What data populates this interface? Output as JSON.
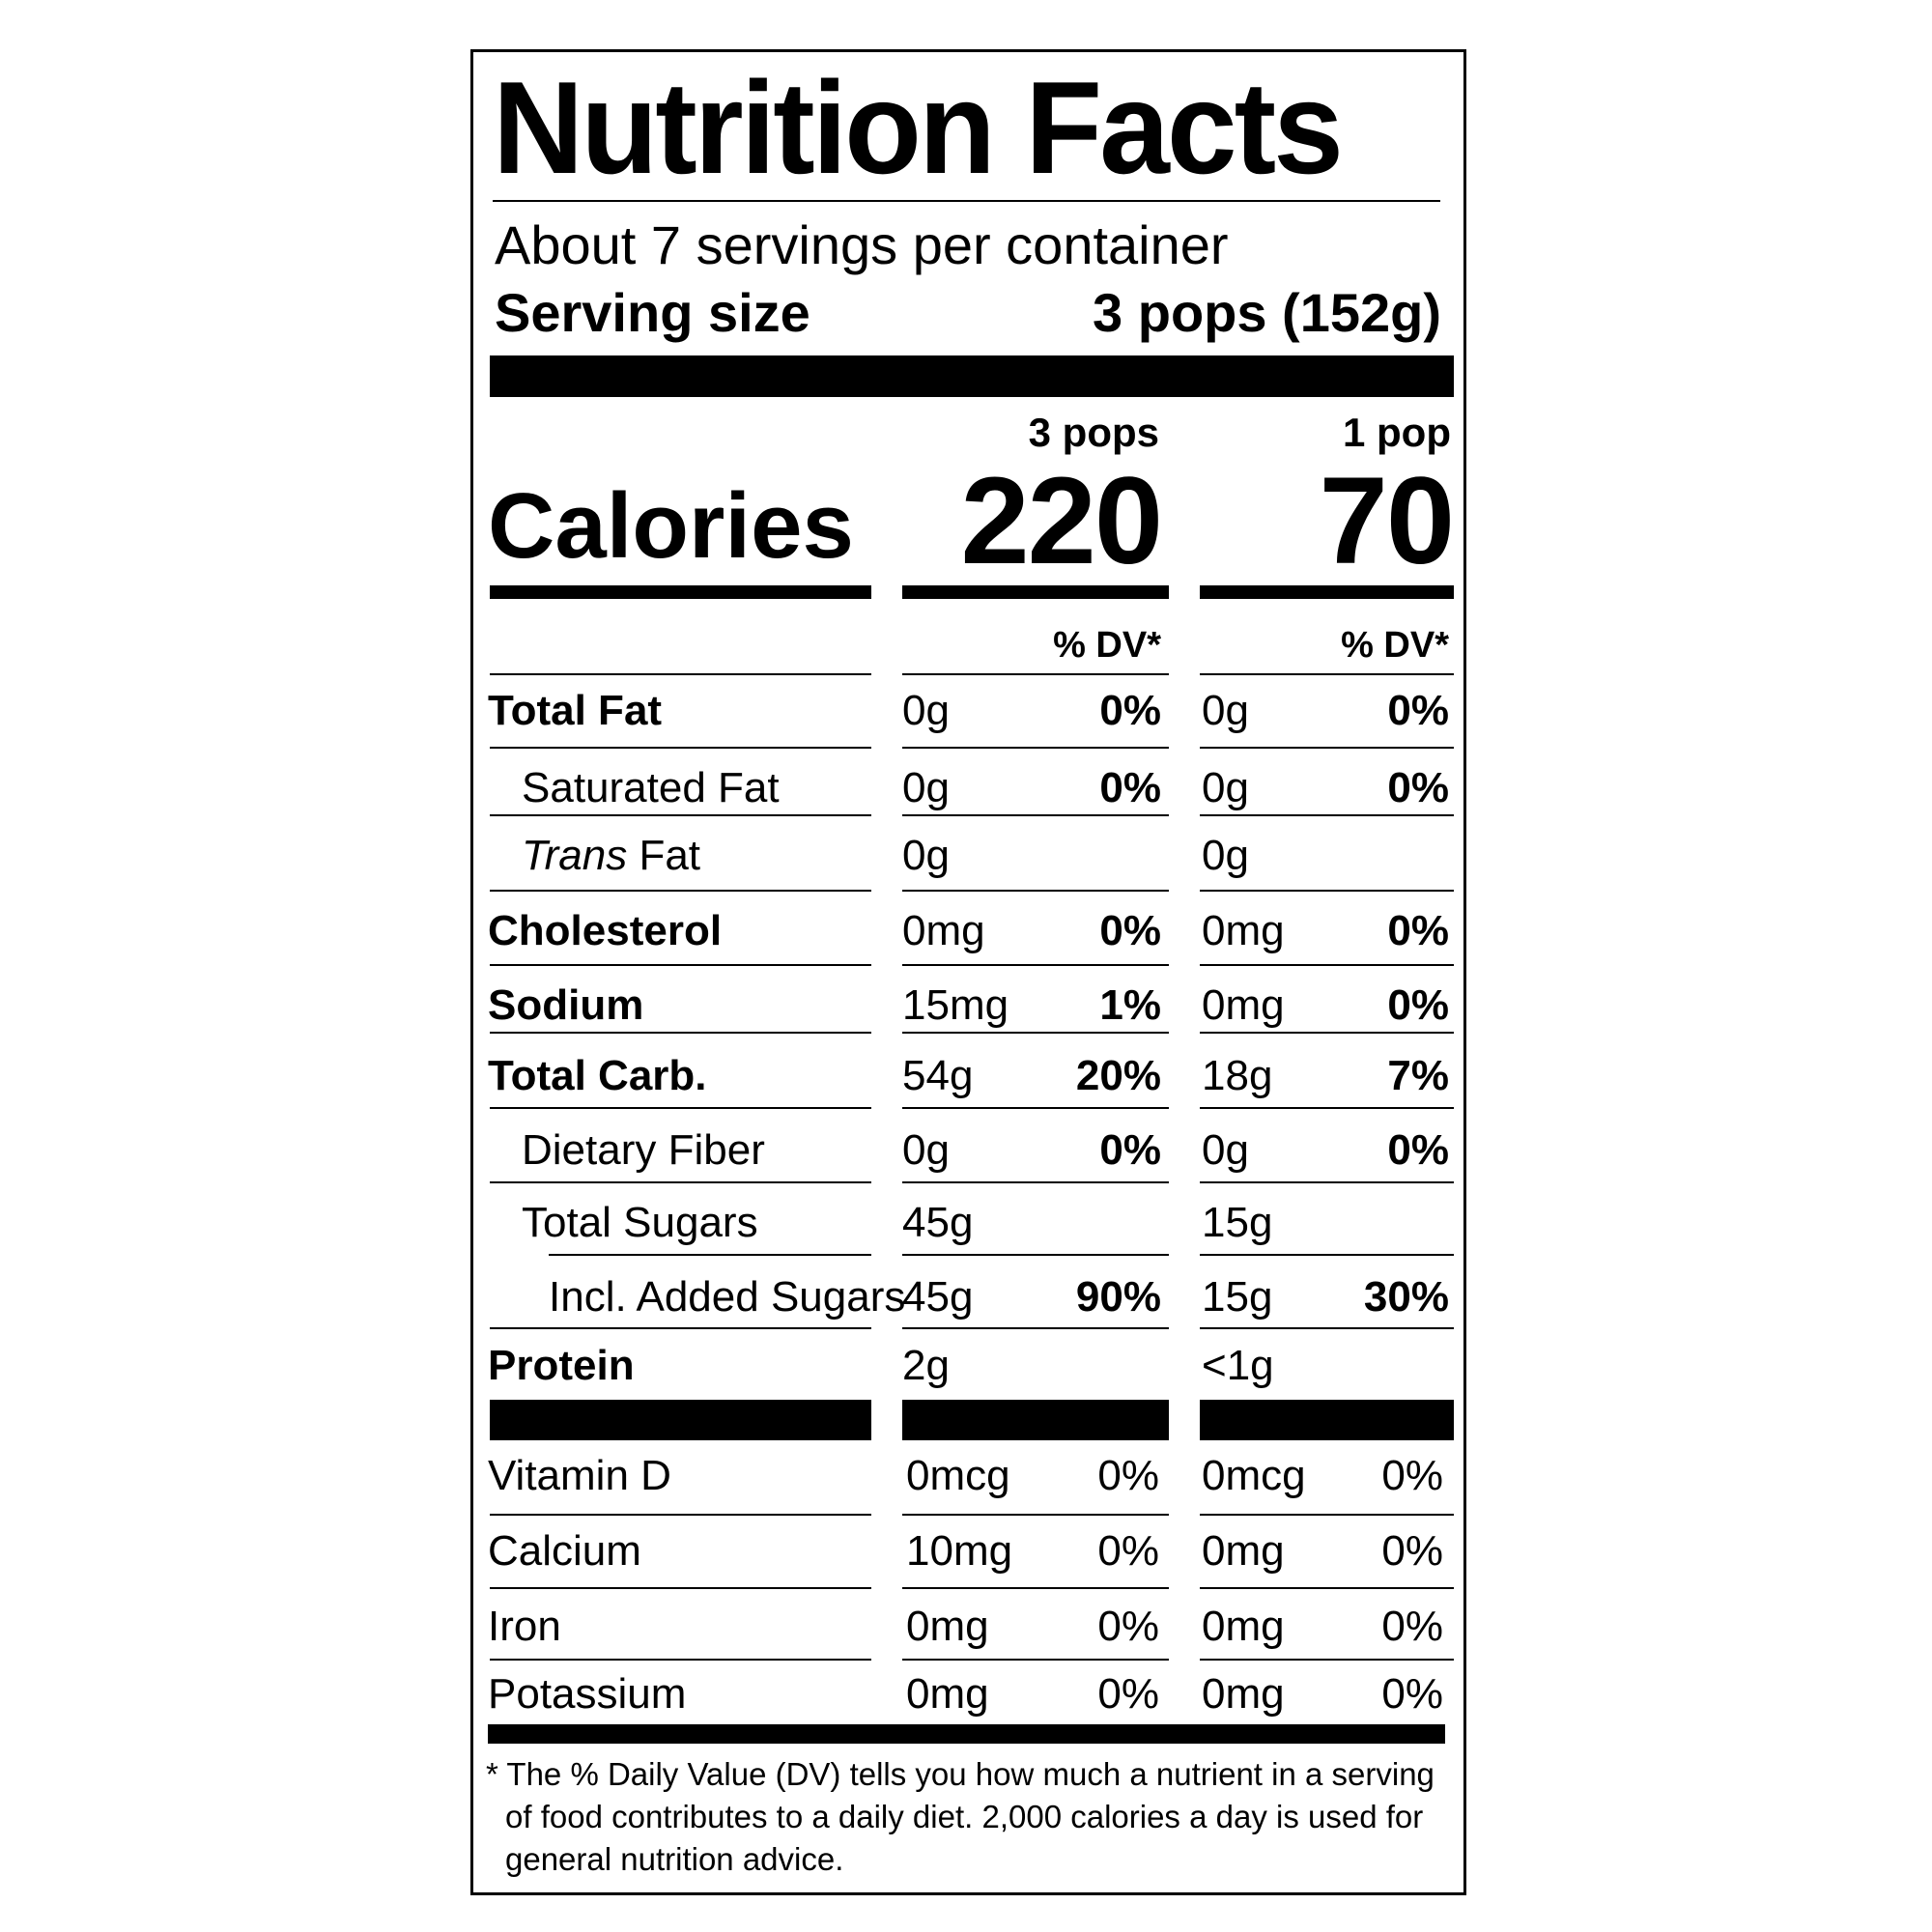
{
  "title": "Nutrition Facts",
  "servings_per_container": "About 7 servings per container",
  "serving_size_label": "Serving size",
  "serving_size_value": "3 pops (152g)",
  "columns": [
    {
      "heading": "3 pops",
      "calories": "220",
      "dv_heading": "% DV*"
    },
    {
      "heading": "1 pop",
      "calories": "70",
      "dv_heading": "% DV*"
    }
  ],
  "calories_label": "Calories",
  "nutrients": [
    {
      "name": "Total Fat",
      "c1_amount": "0g",
      "c1_dv": "0%",
      "c2_amount": "0g",
      "c2_dv": "0%"
    },
    {
      "name": "Saturated Fat",
      "c1_amount": "0g",
      "c1_dv": "0%",
      "c2_amount": "0g",
      "c2_dv": "0%"
    },
    {
      "name_italic": "Trans",
      "name_rest": " Fat",
      "c1_amount": "0g",
      "c1_dv": "",
      "c2_amount": "0g",
      "c2_dv": ""
    },
    {
      "name": "Cholesterol",
      "c1_amount": "0mg",
      "c1_dv": "0%",
      "c2_amount": "0mg",
      "c2_dv": "0%"
    },
    {
      "name": "Sodium",
      "c1_amount": "15mg",
      "c1_dv": "1%",
      "c2_amount": "0mg",
      "c2_dv": "0%"
    },
    {
      "name": "Total Carb.",
      "c1_amount": "54g",
      "c1_dv": "20%",
      "c2_amount": "18g",
      "c2_dv": "7%"
    },
    {
      "name": "Dietary Fiber",
      "c1_amount": "0g",
      "c1_dv": "0%",
      "c2_amount": "0g",
      "c2_dv": "0%"
    },
    {
      "name": "Total Sugars",
      "c1_amount": "45g",
      "c1_dv": "",
      "c2_amount": "15g",
      "c2_dv": ""
    },
    {
      "name": "Incl. Added Sugars",
      "c1_amount": "45g",
      "c1_dv": "90%",
      "c2_amount": "15g",
      "c2_dv": "30%"
    },
    {
      "name": "Protein",
      "c1_amount": "2g",
      "c1_dv": "",
      "c2_amount": "<1g",
      "c2_dv": ""
    }
  ],
  "vitamins": [
    {
      "name": "Vitamin D",
      "c1_amount": "0mcg",
      "c1_dv": "0%",
      "c2_amount": "0mcg",
      "c2_dv": "0%"
    },
    {
      "name": "Calcium",
      "c1_amount": "10mg",
      "c1_dv": "0%",
      "c2_amount": "0mg",
      "c2_dv": "0%"
    },
    {
      "name": "Iron",
      "c1_amount": "0mg",
      "c1_dv": "0%",
      "c2_amount": "0mg",
      "c2_dv": "0%"
    },
    {
      "name": "Potassium",
      "c1_amount": "0mg",
      "c1_dv": "0%",
      "c2_amount": "0mg",
      "c2_dv": "0%"
    }
  ],
  "footnote": "* The % Daily Value (DV) tells you how much a nutrient in a serving of food contributes to a daily diet. 2,000 calories a day is used for general nutrition advice."
}
